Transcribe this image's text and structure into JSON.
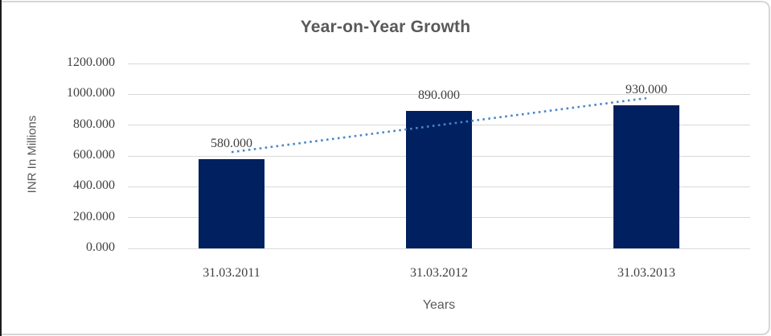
{
  "chart_data": {
    "type": "bar",
    "title": "Year-on-Year Growth",
    "xlabel": "Years",
    "ylabel": "INR In Millions",
    "categories": [
      "31.03.2011",
      "31.03.2012",
      "31.03.2013"
    ],
    "values": [
      580,
      890,
      930
    ],
    "data_labels": [
      "580.000",
      "890.000",
      "930.000"
    ],
    "ylim": [
      0,
      1200
    ],
    "ytick_step": 200,
    "ytick_labels": [
      "0.000",
      "200.000",
      "400.000",
      "600.000",
      "800.000",
      "1000.000",
      "1200.000"
    ],
    "grid": true,
    "legend": "none",
    "bar_color": "#002060",
    "gridline_color": "#d9d9d9",
    "trendline": {
      "type": "linear",
      "style": "dotted",
      "color": "#4a86c8",
      "endpoint_values": [
        625,
        975
      ]
    }
  },
  "frame": {
    "border_color": "#d6d6d6",
    "left_edge_color": "#1c1c1c",
    "background": "#ffffff"
  }
}
